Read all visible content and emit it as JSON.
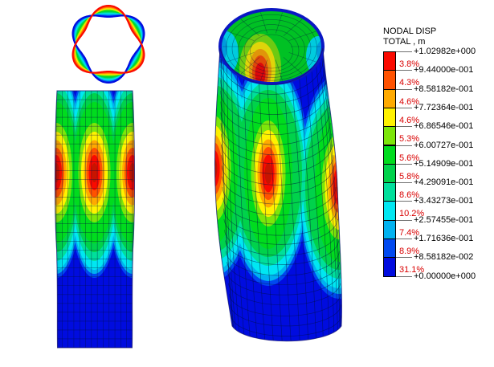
{
  "scene": {
    "background": "#ffffff"
  },
  "legend": {
    "title_line1": "NODAL DISP",
    "title_line2": "TOTAL , m",
    "tick_values": [
      "+1.02982e+000",
      "+9.44000e-001",
      "+8.58182e-001",
      "+7.72364e-001",
      "+6.86546e-001",
      "+6.00727e-001",
      "+5.14909e-001",
      "+4.29091e-001",
      "+3.43273e-001",
      "+2.57455e-001",
      "+1.71636e-001",
      "+8.58182e-002",
      "+0.00000e+000"
    ],
    "bands": [
      {
        "color": "#fa0a00",
        "percent": "3.8%"
      },
      {
        "color": "#ff5200",
        "percent": "4.3%"
      },
      {
        "color": "#ffaa00",
        "percent": "4.6%"
      },
      {
        "color": "#fff200",
        "percent": "4.6%"
      },
      {
        "color": "#7de60a",
        "percent": "5.3%"
      },
      {
        "color": "#00dc1e",
        "percent": "5.6%"
      },
      {
        "color": "#00d24b",
        "percent": "5.8%"
      },
      {
        "color": "#00df9b",
        "percent": "8.6%"
      },
      {
        "color": "#00e7f2",
        "percent": "10.2%"
      },
      {
        "color": "#00b2f0",
        "percent": "7.4%"
      },
      {
        "color": "#0049f0",
        "percent": "8.9%"
      },
      {
        "color": "#000cdf",
        "percent": "31.1%"
      }
    ],
    "tick_color": "#707070",
    "percent_color": "#d90000",
    "text_color": "#000000"
  },
  "render": {
    "hotspot_core_color": "#c81400",
    "mesh_line_color": "rgba(0,16,64,0.55)",
    "outline_color": "rgba(20,20,110,0.75)",
    "rim_color": "#0b17c4",
    "edge_shade_color": "rgba(0,0,40,0.22)"
  }
}
